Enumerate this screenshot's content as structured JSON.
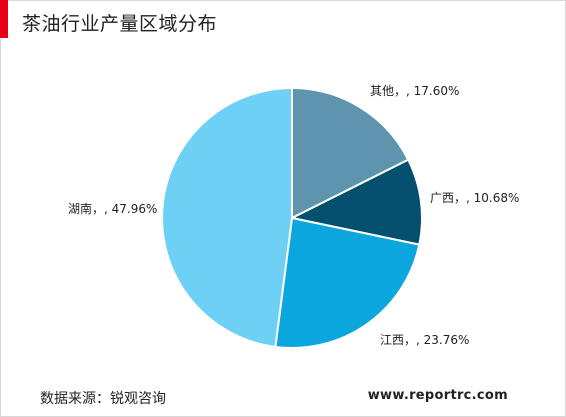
{
  "title": "茶油行业产量区域分布",
  "source": "数据来源：锐观咨询",
  "website": "www.reportrc.com",
  "chart_data": {
    "type": "pie",
    "title": "茶油行业产量区域分布",
    "slices": [
      {
        "name": "其他",
        "value": 17.6,
        "label": "其他，, 17.60%",
        "color": "#5e94ad"
      },
      {
        "name": "广西",
        "value": 10.68,
        "label": "广西，, 10.68%",
        "color": "#03506e"
      },
      {
        "name": "江西",
        "value": 23.76,
        "label": "江西，, 23.76%",
        "color": "#0aa6dd"
      },
      {
        "name": "湖南",
        "value": 47.96,
        "label": "湖南，, 47.96%",
        "color": "#6fd0f6"
      }
    ],
    "start_angle_deg": 0,
    "direction": "clockwise",
    "legend": "none"
  }
}
